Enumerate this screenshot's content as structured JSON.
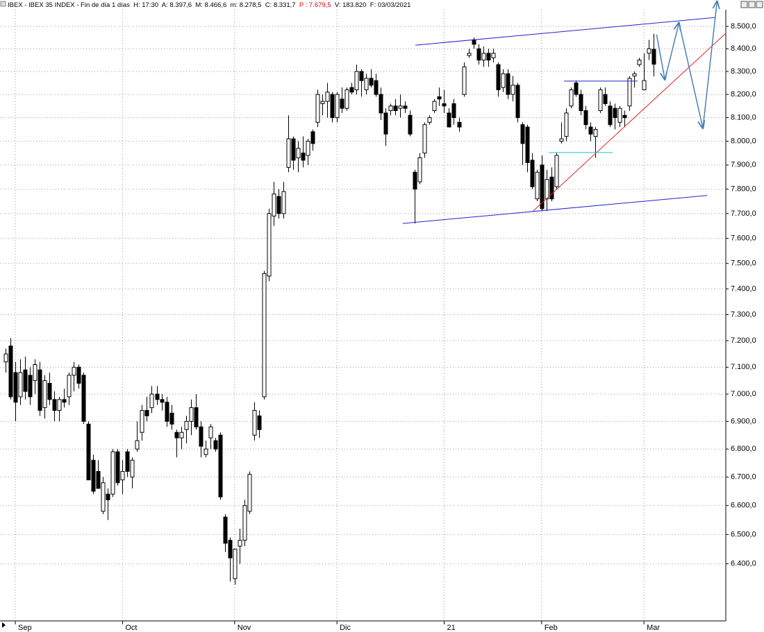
{
  "header": {
    "parts": [
      {
        "text": "IBEX - IBEX 35 INDEX - Fin de día 1 días  H: 17:30  A: 8.397,6  M: 8.466,6  m: 8.278,5  C: 8.331,7  ",
        "color": "#000000"
      },
      {
        "text": "P : 7.679,5",
        "color": "#e00000"
      },
      {
        "text": "  V: 183.820  F: 03/03/2021",
        "color": "#000000"
      }
    ]
  },
  "chart_data": {
    "type": "candlestick",
    "log_scale": true,
    "grid": true,
    "ylim": [
      6210,
      8575
    ],
    "xlim": [
      -1.14,
      147.8
    ],
    "yticks": [
      {
        "value": 6400,
        "label": "6.400,0"
      },
      {
        "value": 6500,
        "label": "6.500,0"
      },
      {
        "value": 6600,
        "label": "6.600,0"
      },
      {
        "value": 6700,
        "label": "6.700,0"
      },
      {
        "value": 6800,
        "label": "6.800,0"
      },
      {
        "value": 6900,
        "label": "6.900,0"
      },
      {
        "value": 7000,
        "label": "7.000,0"
      },
      {
        "value": 7100,
        "label": "7.100,0"
      },
      {
        "value": 7200,
        "label": "7.200,0"
      },
      {
        "value": 7300,
        "label": "7.300,0"
      },
      {
        "value": 7400,
        "label": "7.400,0"
      },
      {
        "value": 7500,
        "label": "7.500,0"
      },
      {
        "value": 7600,
        "label": "7.600,0"
      },
      {
        "value": 7700,
        "label": "7.700,0"
      },
      {
        "value": 7800,
        "label": "7.800,0"
      },
      {
        "value": 7900,
        "label": "7.900,0"
      },
      {
        "value": 8000,
        "label": "8.000,0"
      },
      {
        "value": 8100,
        "label": "8.100,0"
      },
      {
        "value": 8200,
        "label": "8.200,0"
      },
      {
        "value": 8300,
        "label": "8.300,0"
      },
      {
        "value": 8400,
        "label": "8.400,0"
      },
      {
        "value": 8500,
        "label": "8.500,0"
      }
    ],
    "xticks": [
      {
        "value": 2,
        "label": "Sep"
      },
      {
        "value": 24,
        "label": "Oct"
      },
      {
        "value": 47,
        "label": "Nov"
      },
      {
        "value": 68,
        "label": "Dic"
      },
      {
        "value": 90,
        "label": "21"
      },
      {
        "value": 110,
        "label": "Feb"
      },
      {
        "value": 131,
        "label": "Mar"
      }
    ],
    "up_color": "#ffffff",
    "down_color": "#000000",
    "open": [
      7120,
      7180,
      7080,
      6990,
      7090,
      7070,
      7050,
      7090,
      6950,
      7040,
      6980,
      6940,
      6980,
      6990,
      7070,
      7100,
      7070,
      6890,
      6760,
      6720,
      6580,
      6640,
      6640,
      6790,
      6690,
      6790,
      6700,
      6800,
      6860,
      6940,
      6950,
      7000,
      6980,
      6970,
      6930,
      6860,
      6840,
      6870,
      6900,
      6950,
      6880,
      6780,
      6840,
      6830,
      6850,
      6560,
      6480,
      6350,
      6460,
      6480,
      6580,
      6850,
      6920,
      6990,
      7450,
      7690,
      7770,
      7700,
      7890,
      8010,
      7930,
      7950,
      7940,
      8040,
      8080,
      8160,
      8170,
      8200,
      8100,
      8180,
      8140,
      8230,
      8220,
      8300,
      8220,
      8270,
      8260,
      8200,
      8120,
      8130,
      8150,
      8140,
      8150,
      8110,
      7870,
      7830,
      7950,
      8080,
      8130,
      8190,
      8160,
      8120,
      8160,
      8080,
      8200,
      8370,
      8440,
      8400,
      8350,
      8380,
      8360,
      8330,
      8230,
      8290,
      8200,
      8240,
      8070,
      8060,
      7920,
      7760,
      7900,
      7760,
      7850,
      7810,
      8000,
      8020,
      8150,
      8250,
      8200,
      8130,
      8060,
      8020,
      8130,
      8200,
      8150,
      8140,
      8080,
      8110,
      8150,
      8280,
      8330,
      8220,
      8380,
      8397.6
    ],
    "high": [
      7170,
      7210,
      7120,
      7130,
      7140,
      7100,
      7130,
      7120,
      7070,
      7080,
      7010,
      6990,
      7020,
      7080,
      7120,
      7110,
      7080,
      6900,
      6780,
      6760,
      6700,
      6660,
      6800,
      6800,
      6760,
      6800,
      6770,
      6900,
      6960,
      6990,
      7030,
      7030,
      7000,
      6990,
      6960,
      6870,
      6880,
      6920,
      6980,
      7000,
      6900,
      6830,
      6890,
      6840,
      6860,
      6570,
      6490,
      6450,
      6520,
      6620,
      6720,
      6970,
      6940,
      7470,
      7720,
      7830,
      7800,
      7830,
      8110,
      8020,
      8000,
      8020,
      8010,
      8050,
      8220,
      8200,
      8250,
      8210,
      8210,
      8230,
      8230,
      8250,
      8330,
      8310,
      8290,
      8310,
      8290,
      8230,
      8140,
      8160,
      8180,
      8200,
      8170,
      8130,
      7880,
      7950,
      8080,
      8110,
      8180,
      8230,
      8220,
      8140,
      8180,
      8100,
      8340,
      8400,
      8450,
      8420,
      8410,
      8400,
      8400,
      8340,
      8310,
      8310,
      8280,
      8250,
      8080,
      8070,
      7950,
      7880,
      7940,
      7880,
      7890,
      7950,
      8080,
      8140,
      8230,
      8260,
      8220,
      8150,
      8080,
      8060,
      8230,
      8230,
      8170,
      8160,
      8150,
      8130,
      8280,
      8300,
      8360,
      8380,
      8440,
      8466.6
    ],
    "low": [
      7080,
      6980,
      6900,
      6960,
      6980,
      6960,
      7000,
      6920,
      6910,
      6960,
      6900,
      6900,
      6950,
      6960,
      7010,
      7020,
      6890,
      6690,
      6640,
      6660,
      6570,
      6550,
      6630,
      6670,
      6640,
      6700,
      6660,
      6790,
      6830,
      6900,
      6930,
      6960,
      6940,
      6880,
      6870,
      6770,
      6800,
      6820,
      6850,
      6870,
      6770,
      6770,
      6800,
      6790,
      6620,
      6440,
      6340,
      6330,
      6400,
      6460,
      6570,
      6830,
      6840,
      6980,
      7430,
      7650,
      7680,
      7680,
      7870,
      7880,
      7870,
      7890,
      7900,
      7960,
      8060,
      8110,
      8100,
      8080,
      8080,
      8120,
      8130,
      8200,
      8200,
      8190,
      8200,
      8230,
      8190,
      8090,
      7980,
      8110,
      8110,
      8100,
      8120,
      8020,
      7660,
      7820,
      7930,
      8070,
      8120,
      8150,
      8120,
      8060,
      8070,
      8040,
      8190,
      8360,
      8400,
      8330,
      8320,
      8320,
      8340,
      8190,
      8210,
      8180,
      8170,
      8080,
      7900,
      7870,
      7800,
      7750,
      7710,
      7710,
      7750,
      7800,
      7990,
      8000,
      8140,
      8190,
      8110,
      8050,
      8000,
      7930,
      8120,
      8150,
      8060,
      8050,
      8060,
      8060,
      8130,
      8230,
      8320,
      8220,
      8350,
      8278.5
    ],
    "close": [
      7150,
      6990,
      6970,
      7080,
      7010,
      6990,
      7110,
      6940,
      7050,
      6980,
      6940,
      6980,
      6970,
      7070,
      7100,
      7040,
      6900,
      6690,
      6650,
      6660,
      6680,
      6620,
      6790,
      6680,
      6720,
      6720,
      6760,
      6830,
      6940,
      6920,
      7000,
      6980,
      6970,
      6900,
      6890,
      6840,
      6860,
      6900,
      6950,
      6880,
      6810,
      6800,
      6880,
      6800,
      6630,
      6470,
      6420,
      6450,
      6480,
      6600,
      6710,
      6940,
      6870,
      7460,
      7700,
      7780,
      7700,
      7790,
      8010,
      7920,
      7970,
      7920,
      8000,
      7990,
      8200,
      8170,
      8210,
      8100,
      8200,
      8140,
      8220,
      8210,
      8300,
      8260,
      8270,
      8240,
      8200,
      8120,
      8030,
      8150,
      8130,
      8150,
      8140,
      8030,
      7800,
      7930,
      8070,
      8100,
      8170,
      8180,
      8150,
      8060,
      8100,
      8060,
      8320,
      8380,
      8420,
      8350,
      8380,
      8350,
      8380,
      8220,
      8290,
      8200,
      8240,
      8100,
      7990,
      7910,
      7810,
      7870,
      7720,
      7840,
      7760,
      7940,
      8010,
      8120,
      8220,
      8200,
      8130,
      8070,
      8030,
      8050,
      8220,
      8160,
      8070,
      8100,
      8140,
      8100,
      8270,
      8290,
      8350,
      8260,
      8400,
      8331.7
    ],
    "annotations": [
      {
        "kind": "line",
        "color": "#2020d0",
        "x": [
          84.1,
          145.7
        ],
        "y": [
          8416,
          8540
        ]
      },
      {
        "kind": "line",
        "color": "#2020d0",
        "x": [
          81.5,
          144.0
        ],
        "y": [
          7660,
          7774
        ]
      },
      {
        "kind": "line",
        "color": "#e02020",
        "x": [
          108.3,
          147.8
        ],
        "y": [
          7711,
          8469
        ]
      },
      {
        "kind": "line",
        "color": "#2020d0",
        "x": [
          114.6,
          129.7
        ],
        "y": [
          8258,
          8258
        ]
      },
      {
        "kind": "line",
        "color": "#20c0c0",
        "x": [
          111.5,
          124.6
        ],
        "y": [
          7952,
          7952
        ]
      },
      {
        "kind": "arrows",
        "color": "#4a7fb5",
        "x": [
          133.6,
          135.3,
          138.2,
          143.1,
          146.0
        ],
        "y": [
          8463,
          8264,
          8516,
          8055,
          8613
        ]
      }
    ]
  }
}
